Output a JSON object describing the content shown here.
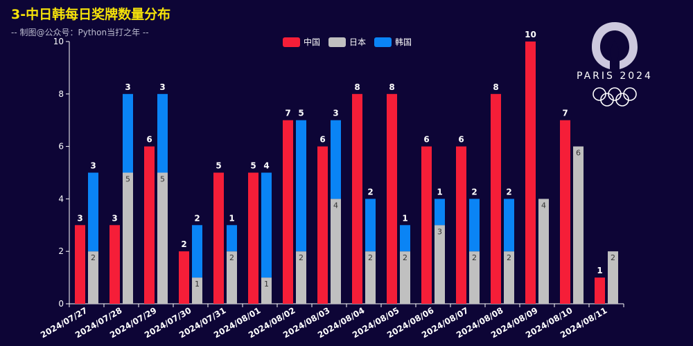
{
  "title": "3-中日韩每日奖牌数量分布",
  "subtitle": "-- 制图@公众号：Python当打之年 --",
  "logo": {
    "wordmark": "PARIS 2024",
    "icon": "paris-2024-olympics-logo"
  },
  "colors": {
    "china": "#f51e38",
    "japan": "#c0c0c0",
    "korea": "#0a84f5",
    "background": "#0d0536"
  },
  "chart_data": {
    "type": "bar",
    "title": "3-中日韩每日奖牌数量分布",
    "subtitle": "-- 制图@公众号：Python当打之年 --",
    "xlabel": "",
    "ylabel": "",
    "ylim": [
      0,
      10
    ],
    "yticks": [
      0,
      2,
      4,
      6,
      8,
      10
    ],
    "grid": false,
    "legend_position": "top-center",
    "categories": [
      "2024/07/27",
      "2024/07/28",
      "2024/07/29",
      "2024/07/30",
      "2024/07/31",
      "2024/08/01",
      "2024/08/02",
      "2024/08/03",
      "2024/08/04",
      "2024/08/05",
      "2024/08/06",
      "2024/08/07",
      "2024/08/08",
      "2024/08/09",
      "2024/08/10",
      "2024/08/11"
    ],
    "series": [
      {
        "name": "中国",
        "stack": "china",
        "values": [
          3,
          3,
          6,
          2,
          5,
          5,
          7,
          6,
          8,
          8,
          6,
          6,
          8,
          10,
          7,
          1
        ]
      },
      {
        "name": "日本",
        "stack": "jk",
        "values": [
          2,
          5,
          5,
          1,
          2,
          1,
          2,
          4,
          2,
          2,
          3,
          2,
          2,
          4,
          6,
          2
        ]
      },
      {
        "name": "韩国",
        "stack": "jk",
        "values": [
          3,
          3,
          3,
          2,
          1,
          4,
          5,
          3,
          2,
          1,
          1,
          2,
          2,
          0,
          0,
          0
        ]
      }
    ]
  }
}
